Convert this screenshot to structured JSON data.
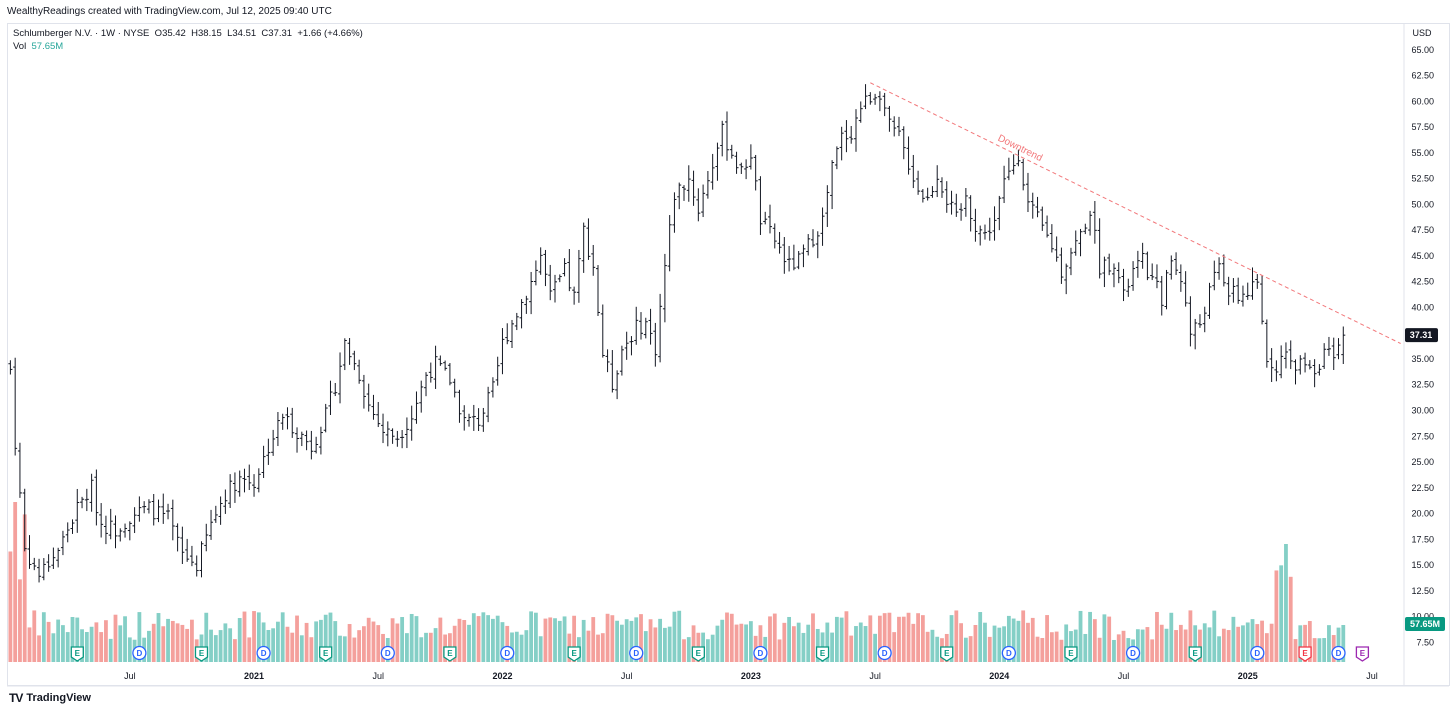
{
  "header": {
    "credit": "WealthyReadings created with TradingView.com, Jul 12, 2025 09:40 UTC"
  },
  "legend": {
    "symbol": "Schlumberger N.V. · 1W · NYSE",
    "open_label": "O",
    "open": "35.42",
    "high_label": "H",
    "high": "38.15",
    "low_label": "L",
    "low": "34.51",
    "close_label": "C",
    "close": "37.31",
    "change": "+1.66 (+4.66%)",
    "vol_label": "Vol",
    "vol_value": "57.65M"
  },
  "footer": {
    "brand": "TradingView",
    "brand_mark": "TV"
  },
  "colors": {
    "bar": "#131722",
    "vol_up": "#84cfc6",
    "vol_down": "#f4a09c",
    "trendline": "#f2787b",
    "event_earnings": "#089981",
    "event_dividend": "#2962ff",
    "event_earnings_next": "#f23645",
    "event_future": "#9c27b0"
  },
  "chart_data": {
    "type": "ohlc",
    "timeframe": "1W",
    "currency_label": "USD",
    "ylim": [
      5.5,
      67.5
    ],
    "y_ticks": [
      "65.00",
      "62.50",
      "60.00",
      "57.50",
      "55.00",
      "52.50",
      "50.00",
      "47.50",
      "45.00",
      "42.50",
      "40.00",
      "37.50",
      "35.00",
      "32.50",
      "30.00",
      "27.50",
      "25.00",
      "22.50",
      "20.00",
      "17.50",
      "15.00",
      "12.50",
      "10.00",
      "7.50"
    ],
    "last_price_label": "37.31",
    "last_volume_label": "57.65M",
    "x_ticks": [
      {
        "label": "Jul",
        "week": 25
      },
      {
        "label": "2021",
        "week": 51
      },
      {
        "label": "Jul",
        "week": 77
      },
      {
        "label": "2022",
        "week": 103
      },
      {
        "label": "Jul",
        "week": 129
      },
      {
        "label": "2023",
        "week": 155
      },
      {
        "label": "Jul",
        "week": 181
      },
      {
        "label": "2024",
        "week": 207
      },
      {
        "label": "Jul",
        "week": 233
      },
      {
        "label": "2025",
        "week": 259
      },
      {
        "label": "Jul",
        "week": 285
      }
    ],
    "week_range": [
      -0.5,
      291.5
    ],
    "close_path": [
      [
        0,
        34.0
      ],
      [
        1,
        27.0
      ],
      [
        3,
        16.5
      ],
      [
        6,
        14.0
      ],
      [
        10,
        16.5
      ],
      [
        14,
        20.5
      ],
      [
        17,
        22.5
      ],
      [
        19,
        19.0
      ],
      [
        22,
        18.5
      ],
      [
        26,
        20.0
      ],
      [
        29,
        20.5
      ],
      [
        33,
        19.5
      ],
      [
        36,
        16.0
      ],
      [
        39,
        15.0
      ],
      [
        42,
        19.0
      ],
      [
        45,
        22.0
      ],
      [
        48,
        23.5
      ],
      [
        51,
        23.0
      ],
      [
        54,
        26.5
      ],
      [
        57,
        29.5
      ],
      [
        60,
        28.0
      ],
      [
        63,
        26.5
      ],
      [
        66,
        29.5
      ],
      [
        68,
        32.5
      ],
      [
        70,
        36.5
      ],
      [
        73,
        33.5
      ],
      [
        75,
        30.5
      ],
      [
        78,
        28.0
      ],
      [
        81,
        27.5
      ],
      [
        84,
        29.5
      ],
      [
        87,
        33.5
      ],
      [
        89,
        34.5
      ],
      [
        92,
        33.0
      ],
      [
        95,
        29.0
      ],
      [
        98,
        29.0
      ],
      [
        101,
        32.0
      ],
      [
        103,
        36.5
      ],
      [
        106,
        39.5
      ],
      [
        109,
        42.5
      ],
      [
        111,
        45.0
      ],
      [
        113,
        41.0
      ],
      [
        116,
        43.5
      ],
      [
        118,
        41.0
      ],
      [
        120,
        47.5
      ],
      [
        122,
        44.0
      ],
      [
        124,
        35.5
      ],
      [
        126,
        32.5
      ],
      [
        128,
        36.0
      ],
      [
        131,
        38.0
      ],
      [
        133,
        38.5
      ],
      [
        135,
        36.0
      ],
      [
        137,
        44.0
      ],
      [
        139,
        51.0
      ],
      [
        142,
        52.5
      ],
      [
        144,
        49.5
      ],
      [
        146,
        52.5
      ],
      [
        149,
        57.0
      ],
      [
        151,
        55.0
      ],
      [
        153,
        53.0
      ],
      [
        155,
        55.0
      ],
      [
        157,
        48.5
      ],
      [
        160,
        46.5
      ],
      [
        163,
        44.0
      ],
      [
        165,
        44.5
      ],
      [
        167,
        46.0
      ],
      [
        170,
        48.5
      ],
      [
        172,
        53.5
      ],
      [
        174,
        56.5
      ],
      [
        176,
        57.0
      ],
      [
        178,
        59.5
      ],
      [
        180,
        60.5
      ],
      [
        182,
        61.0
      ],
      [
        184,
        57.5
      ],
      [
        186,
        56.5
      ],
      [
        188,
        54.0
      ],
      [
        190,
        51.5
      ],
      [
        192,
        50.5
      ],
      [
        194,
        53.0
      ],
      [
        196,
        50.5
      ],
      [
        198,
        48.5
      ],
      [
        200,
        50.5
      ],
      [
        202,
        48.0
      ],
      [
        204,
        47.0
      ],
      [
        206,
        48.5
      ],
      [
        208,
        52.0
      ],
      [
        211,
        55.0
      ],
      [
        213,
        50.0
      ],
      [
        215,
        48.5
      ],
      [
        218,
        46.0
      ],
      [
        220,
        43.5
      ],
      [
        222,
        45.5
      ],
      [
        224,
        47.0
      ],
      [
        226,
        49.5
      ],
      [
        228,
        44.0
      ],
      [
        231,
        44.5
      ],
      [
        233,
        41.0
      ],
      [
        235,
        43.5
      ],
      [
        237,
        44.5
      ],
      [
        239,
        42.5
      ],
      [
        241,
        41.0
      ],
      [
        243,
        44.5
      ],
      [
        245,
        43.0
      ],
      [
        247,
        37.5
      ],
      [
        249,
        38.5
      ],
      [
        251,
        41.5
      ],
      [
        253,
        44.0
      ],
      [
        255,
        41.5
      ],
      [
        257,
        41.0
      ],
      [
        259,
        41.5
      ],
      [
        261,
        42.0
      ],
      [
        263,
        35.0
      ],
      [
        265,
        34.5
      ],
      [
        267,
        35.0
      ],
      [
        269,
        34.0
      ],
      [
        271,
        35.0
      ],
      [
        273,
        34.0
      ],
      [
        275,
        35.5
      ],
      [
        277,
        35.0
      ],
      [
        278,
        35.65
      ],
      [
        279,
        37.31
      ]
    ],
    "volume_m_axis_max": 57.65,
    "volume_note": "weekly volume, shown as a histogram in the bottom fifth of the pane",
    "events": [
      {
        "week": 14,
        "type": "E"
      },
      {
        "week": 27,
        "type": "D"
      },
      {
        "week": 40,
        "type": "E"
      },
      {
        "week": 53,
        "type": "D"
      },
      {
        "week": 66,
        "type": "E"
      },
      {
        "week": 79,
        "type": "D"
      },
      {
        "week": 92,
        "type": "E"
      },
      {
        "week": 104,
        "type": "D"
      },
      {
        "week": 118,
        "type": "E"
      },
      {
        "week": 131,
        "type": "D"
      },
      {
        "week": 144,
        "type": "E"
      },
      {
        "week": 157,
        "type": "D"
      },
      {
        "week": 170,
        "type": "E"
      },
      {
        "week": 183,
        "type": "D"
      },
      {
        "week": 196,
        "type": "E"
      },
      {
        "week": 209,
        "type": "D"
      },
      {
        "week": 222,
        "type": "E"
      },
      {
        "week": 235,
        "type": "D"
      },
      {
        "week": 248,
        "type": "E"
      },
      {
        "week": 261,
        "type": "D"
      },
      {
        "week": 271,
        "type": "E-red"
      },
      {
        "week": 278,
        "type": "D"
      },
      {
        "week": 283,
        "type": "E-purple"
      }
    ],
    "drawings": [
      {
        "type": "trendline",
        "label": "Downtrend",
        "from": {
          "week": 180,
          "price": 61.8
        },
        "to": {
          "week": 291,
          "price": 36.5
        }
      }
    ],
    "grid": false
  }
}
